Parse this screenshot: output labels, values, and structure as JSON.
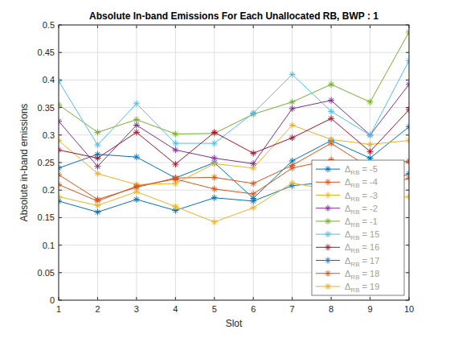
{
  "chart_data": {
    "type": "line",
    "title": "Absolute In-band Emissions For Each Unallocated RB, BWP : 1",
    "x_label": "Slot",
    "y_label": "Absolute in-band emissions",
    "x": [
      1,
      2,
      3,
      4,
      5,
      6,
      7,
      8,
      9,
      10
    ],
    "xlim": [
      1,
      10
    ],
    "xticks": [
      1,
      2,
      3,
      4,
      5,
      6,
      7,
      8,
      9,
      10
    ],
    "ylim": [
      0,
      0.5
    ],
    "yticks": [
      0,
      0.05,
      0.1,
      0.15,
      0.2,
      0.25,
      0.3,
      0.35,
      0.4,
      0.45,
      0.5
    ],
    "grid": true,
    "legend": "southeast",
    "marker": "star",
    "series": [
      {
        "name": "ΔRB = -5",
        "color": "#0072BD",
        "values": [
          0.24,
          0.265,
          0.26,
          0.222,
          0.25,
          0.185,
          0.253,
          0.29,
          0.258,
          0.315
        ]
      },
      {
        "name": "ΔRB = -4",
        "color": "#D95319",
        "values": [
          0.228,
          0.183,
          0.205,
          0.222,
          0.223,
          0.212,
          0.245,
          0.285,
          0.24,
          0.253
        ]
      },
      {
        "name": "ΔRB = -3",
        "color": "#EDB120",
        "values": [
          0.29,
          0.23,
          0.21,
          0.212,
          0.248,
          0.24,
          0.318,
          0.292,
          0.283,
          0.29
        ]
      },
      {
        "name": "ΔRB = -2",
        "color": "#7E2F8E",
        "values": [
          0.325,
          0.243,
          0.318,
          0.273,
          0.258,
          0.248,
          0.348,
          0.363,
          0.3,
          0.392
        ]
      },
      {
        "name": "ΔRB = -1",
        "color": "#77AC30",
        "values": [
          0.355,
          0.305,
          0.328,
          0.302,
          0.303,
          0.338,
          0.36,
          0.392,
          0.36,
          0.487
        ]
      },
      {
        "name": "ΔRB = 15",
        "color": "#4DBEEE",
        "values": [
          0.398,
          0.282,
          0.357,
          0.285,
          0.285,
          0.34,
          0.41,
          0.343,
          0.3,
          0.435
        ]
      },
      {
        "name": "ΔRB = 16",
        "color": "#A2142F",
        "values": [
          0.273,
          0.258,
          0.305,
          0.247,
          0.305,
          0.267,
          0.295,
          0.33,
          0.27,
          0.346
        ]
      },
      {
        "name": "ΔRB = 17",
        "color": "#0072BD",
        "values": [
          0.18,
          0.16,
          0.183,
          0.163,
          0.186,
          0.18,
          0.208,
          0.215,
          0.2,
          0.23
        ]
      },
      {
        "name": "ΔRB = 18",
        "color": "#D95319",
        "values": [
          0.21,
          0.18,
          0.207,
          0.22,
          0.202,
          0.193,
          0.24,
          0.255,
          0.195,
          0.222
        ]
      },
      {
        "name": "ΔRB = 19",
        "color": "#EDB120",
        "values": [
          0.188,
          0.172,
          0.197,
          0.17,
          0.142,
          0.168,
          0.213,
          0.2,
          0.18,
          0.188
        ]
      }
    ]
  }
}
